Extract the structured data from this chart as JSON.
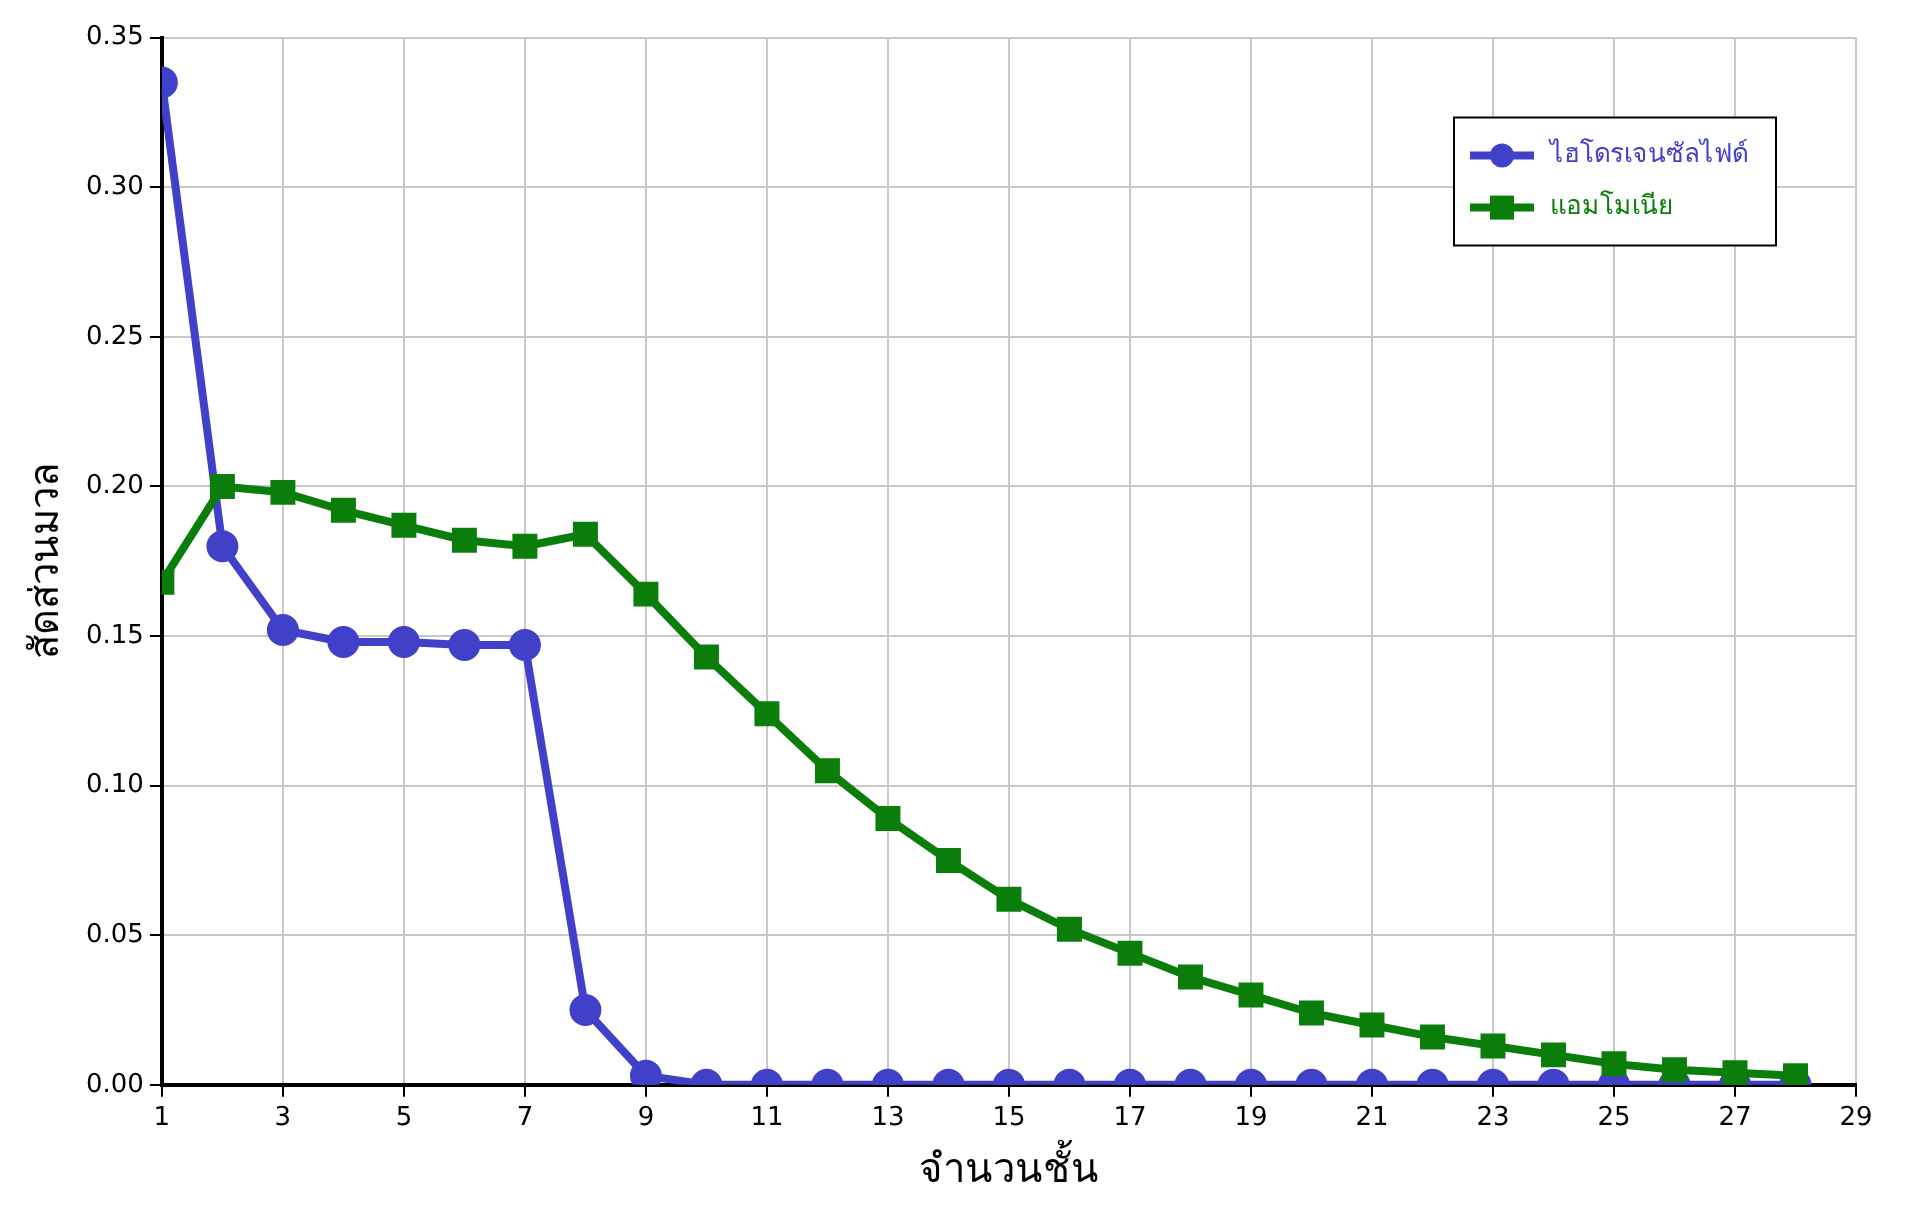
{
  "chart_data": {
    "type": "line",
    "xlabel": "จำนวนชั้น",
    "ylabel": "สัดส่วนมวล",
    "x": [
      1,
      2,
      3,
      4,
      5,
      6,
      7,
      8,
      9,
      10,
      11,
      12,
      13,
      14,
      15,
      16,
      17,
      18,
      19,
      20,
      21,
      22,
      23,
      24,
      25,
      26,
      27,
      28
    ],
    "series": [
      {
        "name": "ไฮโดรเจนซัลไฟด์",
        "color": "#4040c8",
        "marker": "circle",
        "values": [
          0.335,
          0.18,
          0.152,
          0.148,
          0.148,
          0.147,
          0.147,
          0.025,
          0.003,
          0,
          0,
          0,
          0,
          0,
          0,
          0,
          0,
          0,
          0,
          0,
          0,
          0,
          0,
          0,
          0,
          0,
          0,
          0
        ]
      },
      {
        "name": "แอมโมเนีย",
        "color": "#0a7d0a",
        "marker": "square",
        "values": [
          0.168,
          0.2,
          0.198,
          0.192,
          0.187,
          0.182,
          0.18,
          0.184,
          0.164,
          0.143,
          0.124,
          0.105,
          0.089,
          0.075,
          0.062,
          0.052,
          0.044,
          0.036,
          0.03,
          0.024,
          0.02,
          0.016,
          0.013,
          0.01,
          0.007,
          0.005,
          0.004,
          0.003
        ]
      }
    ],
    "xlim": [
      1,
      29
    ],
    "xticks": [
      1,
      3,
      5,
      7,
      9,
      11,
      13,
      15,
      17,
      19,
      21,
      23,
      25,
      27,
      29
    ],
    "ylim": [
      0,
      0.35
    ],
    "yticks": [
      {
        "value": 0,
        "label": "0.00"
      },
      {
        "value": 0.05,
        "label": "0.05"
      },
      {
        "value": 0.1,
        "label": "0.10"
      },
      {
        "value": 0.15,
        "label": "0.15"
      },
      {
        "value": 0.2,
        "label": "0.20"
      },
      {
        "value": 0.25,
        "label": "0.25"
      },
      {
        "value": 0.3,
        "label": "0.30"
      },
      {
        "value": 0.35,
        "label": "0.35"
      }
    ],
    "grid": true,
    "legend": "top right",
    "line_style": "solid"
  }
}
